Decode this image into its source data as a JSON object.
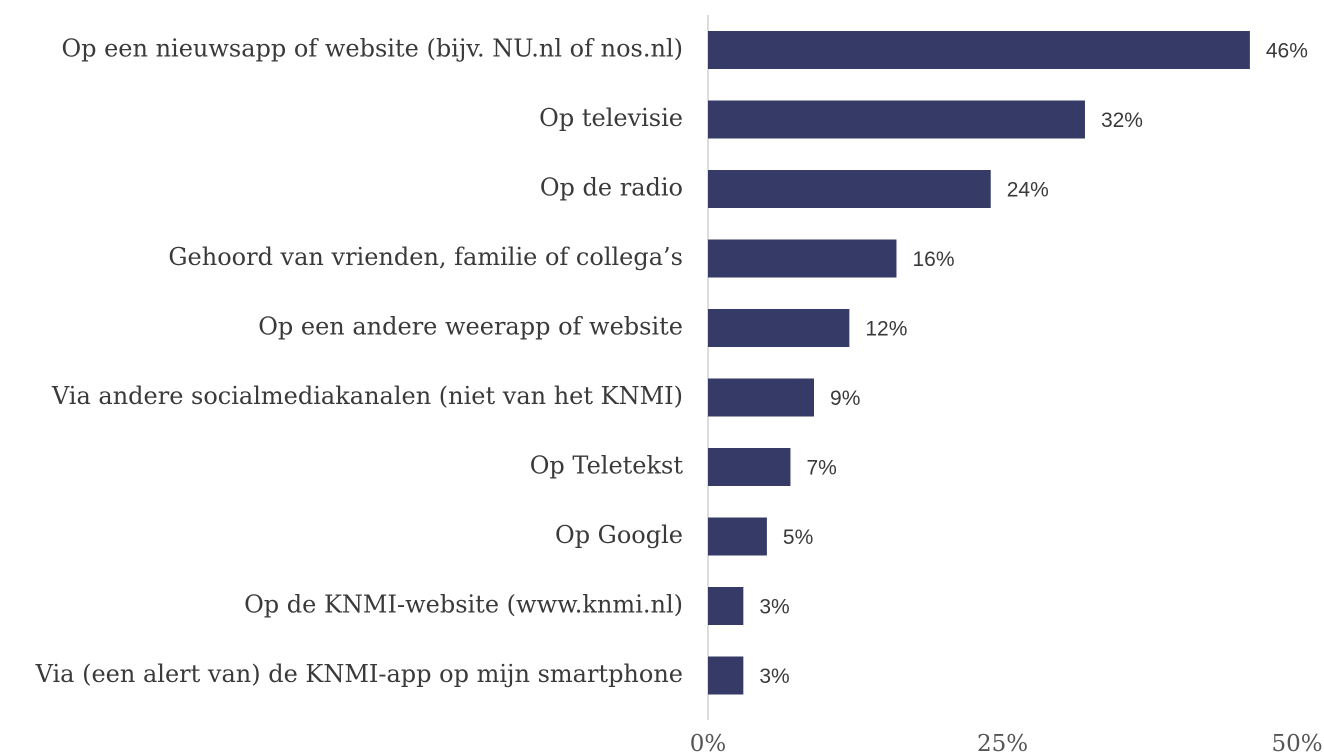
{
  "chart_data": {
    "type": "barh",
    "categories": [
      "Op een nieuwsapp of website (bijv. NU.nl of nos.nl)",
      "Op televisie",
      "Op de radio",
      "Gehoord van vrienden, familie of collega’s",
      "Op een andere weerapp of website",
      "Via andere socialmediakanalen (niet van het KNMI)",
      "Op Teletekst",
      "Op Google",
      "Op de KNMI-website (www.knmi.nl)",
      "Via (een alert van) de KNMI-app op mijn smartphone"
    ],
    "values": [
      46,
      32,
      24,
      16,
      12,
      9,
      7,
      5,
      3,
      3
    ],
    "value_labels": [
      "46%",
      "32%",
      "24%",
      "16%",
      "12%",
      "9%",
      "7%",
      "5%",
      "3%",
      "3%"
    ],
    "color": "#363a66",
    "xlim": [
      0,
      50
    ],
    "xticks": [
      {
        "value": 0,
        "label": "0%"
      },
      {
        "value": 25,
        "label": "25%"
      },
      {
        "value": 50,
        "label": "50%"
      }
    ],
    "grid": false
  }
}
